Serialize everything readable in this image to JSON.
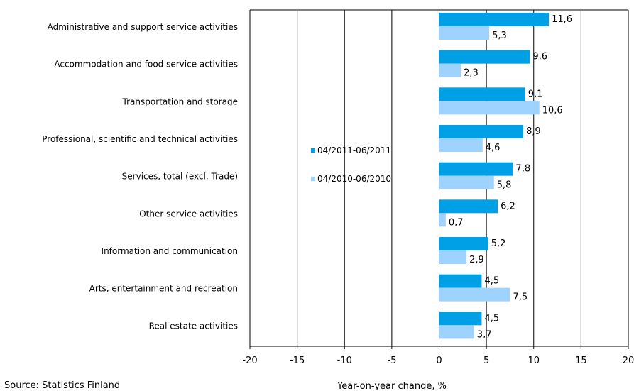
{
  "chart_data": {
    "type": "bar",
    "orientation": "horizontal",
    "categories": [
      "Administrative and support service activities",
      "Accommodation and food service activities",
      "Transportation and storage",
      "Professional, scientific and technical activities",
      "Services, total (excl. Trade)",
      "Other service activities",
      "Information and communication",
      "Arts, entertainment and recreation",
      "Real estate activities"
    ],
    "series": [
      {
        "name": "04/2011-06/2011",
        "color": "#00a0e6",
        "values": [
          11.6,
          9.6,
          9.1,
          8.9,
          7.8,
          6.2,
          5.2,
          4.5,
          4.5
        ],
        "labels": [
          "11,6",
          "9,6",
          "9,1",
          "8,9",
          "7,8",
          "6,2",
          "5,2",
          "4,5",
          "4,5"
        ]
      },
      {
        "name": "04/2010-06/2010",
        "color": "#9fd3ff",
        "values": [
          5.3,
          2.3,
          10.6,
          4.6,
          5.8,
          0.7,
          2.9,
          7.5,
          3.7
        ],
        "labels": [
          "5,3",
          "2,3",
          "10,6",
          "4,6",
          "5,8",
          "0,7",
          "2,9",
          "7,5",
          "3,7"
        ]
      }
    ],
    "xlim": [
      -20,
      20
    ],
    "xticks": [
      -20,
      -15,
      -10,
      -5,
      0,
      5,
      10,
      15,
      20
    ],
    "xtick_labels": [
      "-20",
      "-15",
      "-10",
      "-5",
      "0",
      "5",
      "10",
      "15",
      "20"
    ],
    "xlabel": "Year-on-year change, %",
    "title": "",
    "grid": "vertical",
    "legend": "inside-center"
  },
  "source": "Source: Statistics Finland"
}
